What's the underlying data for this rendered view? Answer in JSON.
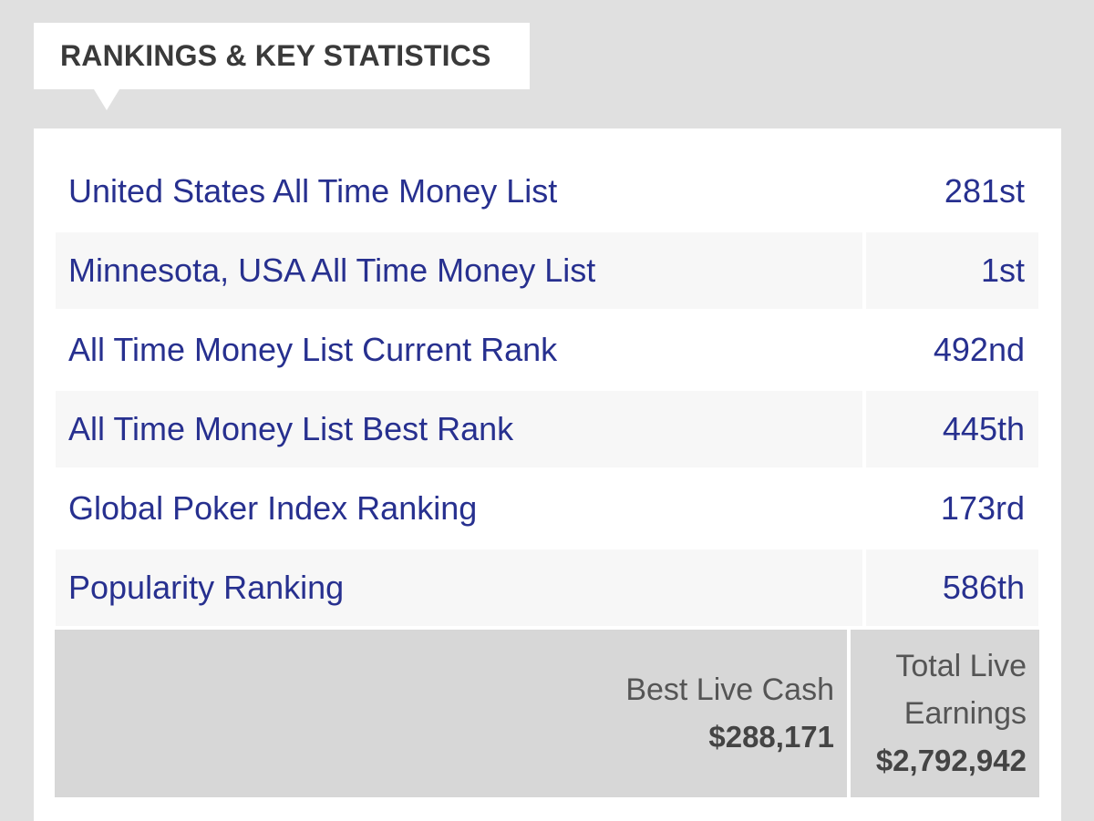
{
  "section": {
    "title": "RANKINGS & KEY STATISTICS"
  },
  "stats": [
    {
      "label": "United States All Time Money List",
      "value": "281st"
    },
    {
      "label": "Minnesota, USA All Time Money List",
      "value": "1st"
    },
    {
      "label": "All Time Money List Current Rank",
      "value": "492nd"
    },
    {
      "label": "All Time Money List Best Rank",
      "value": "445th"
    },
    {
      "label": "Global Poker Index Ranking",
      "value": "173rd"
    },
    {
      "label": "Popularity Ranking",
      "value": "586th"
    }
  ],
  "earnings": {
    "best_live_cash": {
      "label": "Best Live Cash",
      "amount": "$288,171"
    },
    "total_live_earnings": {
      "label": "Total Live Earnings",
      "amount": "$2,792,942"
    }
  },
  "colors": {
    "background": "#e0e0e0",
    "panel": "#ffffff",
    "link_text": "#27308f",
    "row_shade": "#f7f7f7",
    "earnings_bg": "#d7d7d7"
  }
}
